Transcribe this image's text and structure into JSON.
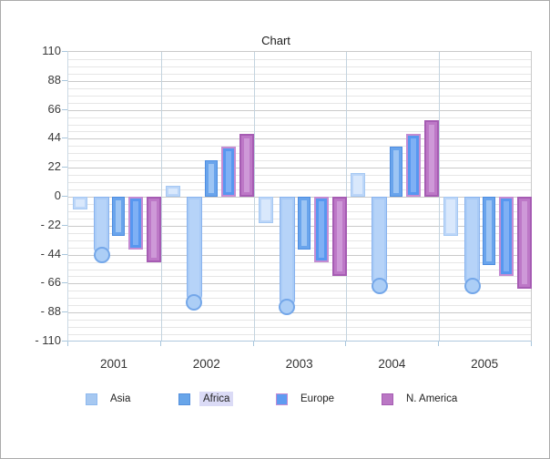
{
  "frame": {
    "border_color": "#ABABAB",
    "background": "#FFFFFF"
  },
  "chart_data": {
    "type": "bar",
    "title": "Chart",
    "categories": [
      "2001",
      "2002",
      "2003",
      "2004",
      "2005"
    ],
    "series": [
      {
        "name": "",
        "in_legend": false,
        "values": [
          -10,
          8,
          -20,
          18,
          -30
        ],
        "style": {
          "border": "#A5C8F3",
          "frame": "#BCD6F8",
          "center": "#D9E8FC",
          "border_width": 1,
          "inset": 2
        }
      },
      {
        "name": "Asia",
        "in_legend": true,
        "values": [
          -44,
          -80,
          -84,
          -68,
          -68
        ],
        "style": {
          "border": "#88B2EE",
          "frame": "#A9CBF6",
          "center": "#B6D3F8",
          "border_width": 1,
          "inset": 2,
          "rounded_end": true,
          "end_circle": {
            "fill": "#ACCEF6",
            "border": "#74A7E9"
          }
        },
        "legend_swatch": {
          "fill": "#A6C8F1",
          "border": "#8FB9EE"
        }
      },
      {
        "name": "Africa",
        "in_legend": true,
        "legend_highlighted": true,
        "values": [
          -30,
          28,
          -40,
          38,
          -52
        ],
        "style": {
          "border": "#4C8CE0",
          "frame": "#69A4EC",
          "center": "#9DC5F4",
          "border_width": 1,
          "inset": 3
        },
        "legend_swatch": {
          "fill": "#68A5E9",
          "border": "#5590DD"
        }
      },
      {
        "name": "Europe",
        "in_legend": true,
        "values": [
          -40,
          38,
          -50,
          48,
          -60
        ],
        "style": {
          "border": "#C48CD3",
          "frame": "#5797F0",
          "center": "#7FB0F5",
          "border_width": 2,
          "inset": 3
        },
        "legend_swatch": {
          "fill": "#5F9BF1",
          "border": "#C48CD3"
        }
      },
      {
        "name": "N. America",
        "in_legend": true,
        "values": [
          -50,
          48,
          -60,
          58,
          -70
        ],
        "style": {
          "border": "#A65CB3",
          "frame": "#BD78C7",
          "center": "#CE99D8",
          "border_width": 2,
          "inset": 3
        },
        "legend_swatch": {
          "fill": "#BA77C4",
          "border": "#A65CB3"
        }
      }
    ],
    "ylim": [
      -110,
      110
    ],
    "y_major_step": 22,
    "y_minor_step": 5.5,
    "y_tick_labels": [
      "110",
      "88",
      "66",
      "44",
      "22",
      "0",
      "- 22",
      "- 44",
      "- 66",
      "- 88",
      "- 110"
    ],
    "grid": {
      "major_color": "#CACACA",
      "minor_color": "#E6E6E6",
      "category_separator_color": "#C3D3DF",
      "axis_color": "#AFC9DF"
    },
    "legend_position": "bottom",
    "legend_highlight_bg": "#DBDBF6"
  }
}
